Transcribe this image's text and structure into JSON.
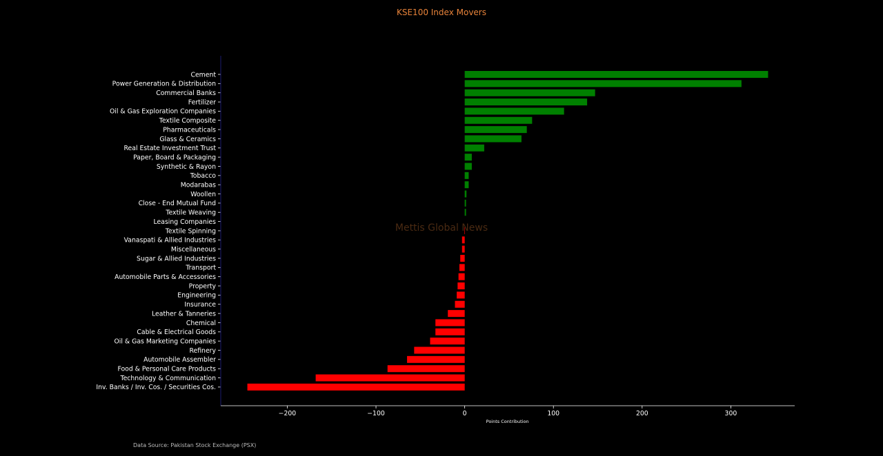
{
  "title": "KSE100 Index Movers",
  "watermark": "Mettis Global News",
  "source_note": "Data Source: Pakistan Stock Exchange (PSX)",
  "colors": {
    "background": "#000000",
    "title": "#e8833a",
    "positive": "#008000",
    "negative": "#ff0000",
    "axis_left": "#1a1a6e",
    "axis_bottom": "#ffffff",
    "text": "#ffffff",
    "watermark": "#4a2a12"
  },
  "chart_data": {
    "type": "bar",
    "orientation": "horizontal",
    "title": "KSE100 Index Movers",
    "xlabel": "Points Contribution",
    "ylabel": "",
    "xlim": [
      -275,
      372
    ],
    "xticks": [
      -200,
      -100,
      0,
      100,
      200,
      300
    ],
    "xtick_labels": [
      "−200",
      "−100",
      "0",
      "100",
      "200",
      "300"
    ],
    "grid": false,
    "categories": [
      "Cement",
      "Power Generation & Distribution",
      "Commercial Banks",
      "Fertilizer",
      "Oil & Gas Exploration Companies",
      "Textile Composite",
      "Pharmaceuticals",
      "Glass & Ceramics",
      "Real Estate Investment Trust",
      "Paper, Board & Packaging",
      "Synthetic & Rayon",
      "Tobacco",
      "Modarabas",
      "Woollen",
      "Close - End Mutual Fund",
      "Textile Weaving",
      "Leasing Companies",
      "Textile Spinning",
      "Vanaspati & Allied Industries",
      "Miscellaneous",
      "Sugar & Allied Industries",
      "Transport",
      "Automobile Parts & Accessories",
      "Property",
      "Engineering",
      "Insurance",
      "Leather & Tanneries",
      "Chemical",
      "Cable & Electrical Goods",
      "Oil & Gas Marketing Companies",
      "Refinery",
      "Automobile Assembler",
      "Food & Personal Care Products",
      "Technology & Communication",
      "Inv. Banks / Inv. Cos. / Securities Cos."
    ],
    "values": [
      342,
      312,
      147,
      138,
      112,
      76,
      70,
      64,
      22,
      8,
      8,
      4.5,
      4.5,
      2,
      1.5,
      1.5,
      0,
      -0.5,
      -3,
      -3,
      -5,
      -6,
      -7,
      -8,
      -9,
      -11,
      -19,
      -33,
      -33,
      -39,
      -57,
      -65,
      -87,
      -168,
      -245
    ]
  }
}
